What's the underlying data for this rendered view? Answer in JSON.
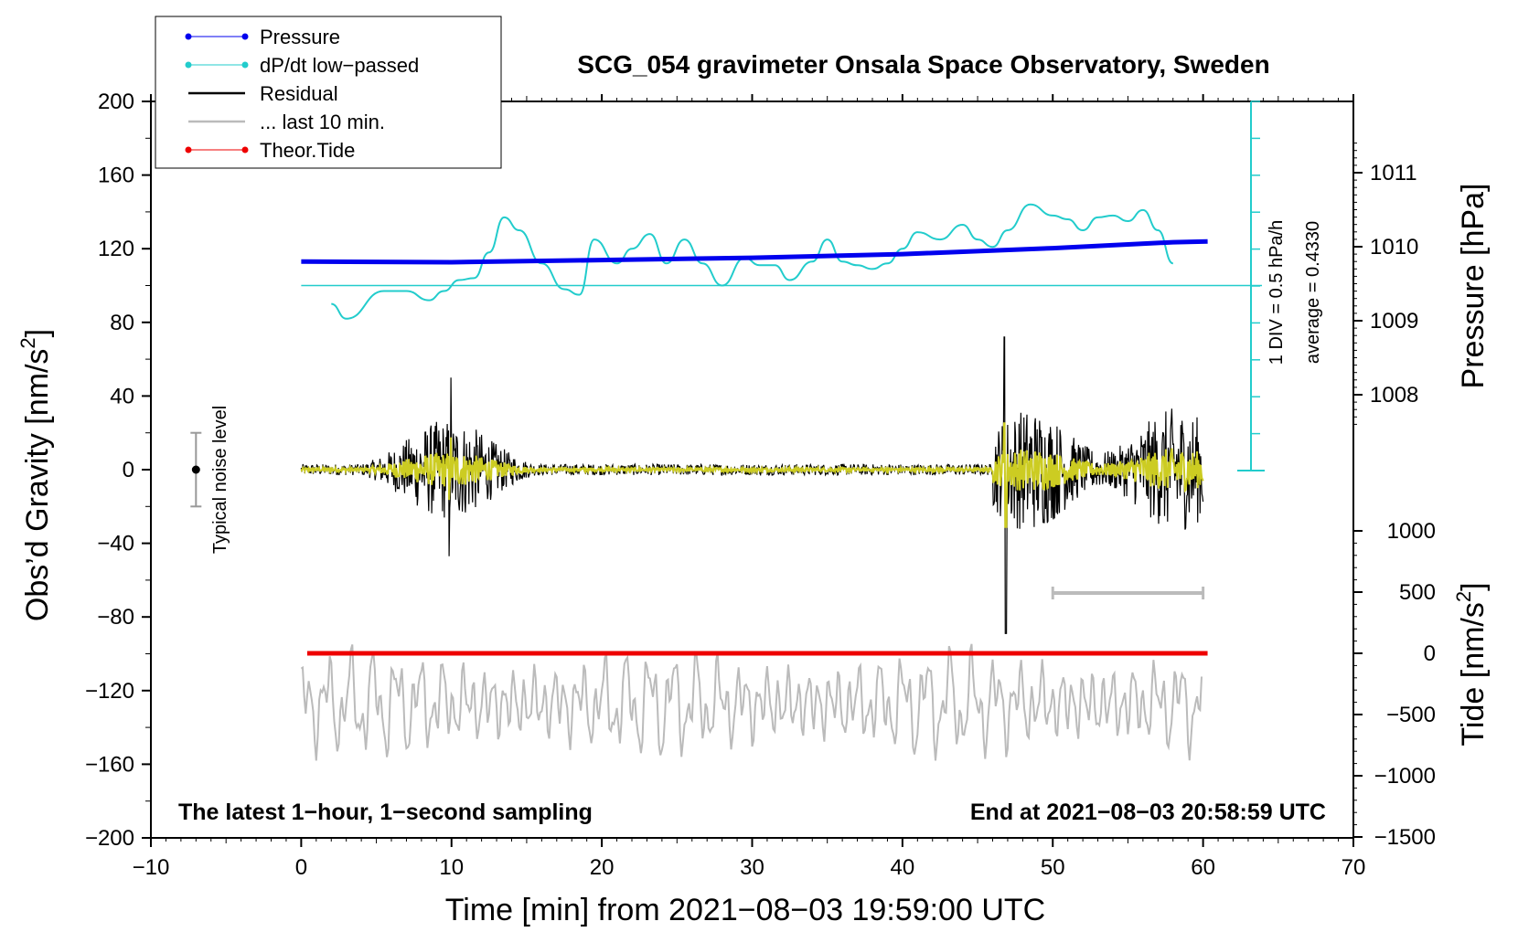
{
  "chart_data": {
    "type": "line",
    "title": "SCG_054 gravimeter Onsala Space Observatory, Sweden",
    "xlabel": "Time [min] from 2021−08−03 19:59:00 UTC",
    "ylabel_left_pre": "Obs’d Gravity [nm/s",
    "ylabel_left_sup": "2",
    "ylabel_left_post": "]",
    "ylabel_right_pressure": "Pressure [hPa]",
    "ylabel_right_tide_pre": "Tide [nm/s",
    "ylabel_right_tide_sup": "2",
    "ylabel_right_tide_post": "]",
    "xlim": [
      -10,
      70
    ],
    "ylim": [
      -200,
      200
    ],
    "x_ticks": [
      "−10",
      "0",
      "10",
      "20",
      "30",
      "40",
      "50",
      "60",
      "70"
    ],
    "y_ticks": [
      "200",
      "160",
      "120",
      "80",
      "40",
      "0",
      "−40",
      "−80",
      "−120",
      "−160",
      "−200"
    ],
    "pressure_ticks": [
      "1011",
      "1010",
      "1009",
      "1008"
    ],
    "tide_ticks": [
      "1000",
      "500",
      "0",
      "−500",
      "−1000",
      "−1500"
    ],
    "legend": {
      "position": "top-left",
      "entries": [
        {
          "label": "Pressure",
          "color": "#0000ee",
          "marker": "dot"
        },
        {
          "label": "dP/dt low−passed",
          "color": "#22cccc",
          "marker": "dot"
        },
        {
          "label": "Residual",
          "color": "#000000",
          "marker": "line"
        },
        {
          "label": "... last 10 min.",
          "color": "#bbbbbb",
          "marker": "line"
        },
        {
          "label": "Theor.Tide",
          "color": "#ee0000",
          "marker": "dot"
        }
      ]
    },
    "annotations": {
      "bottom_left": "The latest 1−hour, 1−second sampling",
      "bottom_right": "End at 2021−08−03 20:58:59 UTC",
      "noise": "Typical noise level",
      "div": "1 DIV = 0.5 hPa/h",
      "average": "average = 0.4330"
    },
    "noise_bar": {
      "x": -7,
      "y": 0,
      "low": -20,
      "high": 20
    },
    "last10_bar": {
      "x0": 50,
      "x1": 60,
      "y": -67
    },
    "dpdt_reference_level": 100,
    "pressure_series": {
      "name": "Pressure",
      "unit": "hPa",
      "x": [
        0,
        10,
        20,
        30,
        40,
        50,
        58,
        60.3
      ],
      "values": [
        1009.8,
        1009.79,
        1009.82,
        1009.85,
        1009.9,
        1009.98,
        1010.06,
        1010.07
      ]
    },
    "dpdt_series": {
      "name": "dP/dt low-passed",
      "x": [
        2.0,
        3.0,
        5.5,
        7.0,
        8.5,
        9.5,
        10.5,
        11.5,
        12.5,
        13.5,
        14.5,
        16.0,
        17.5,
        18.5,
        19.5,
        21.0,
        22.0,
        23.2,
        24.3,
        25.5,
        26.7,
        28.0,
        29.5,
        30.5,
        31.5,
        32.5,
        34.0,
        35.0,
        36.0,
        37.0,
        38.0,
        39.0,
        40.0,
        41.0,
        42.5,
        44.0,
        45.0,
        46.0,
        47.0,
        48.5,
        50.0,
        51.0,
        52.0,
        53.0,
        54.0,
        55.0,
        56.0,
        57.0,
        58.0
      ],
      "values": [
        90,
        82,
        97,
        97,
        92,
        97,
        103,
        104,
        118,
        137,
        130,
        112,
        98,
        95,
        125,
        112,
        120,
        128,
        112,
        125,
        112,
        100,
        115,
        111,
        111,
        103,
        113,
        125,
        113,
        111,
        109,
        112,
        120,
        129,
        125,
        133,
        125,
        121,
        130,
        144,
        138,
        136,
        130,
        137,
        138,
        135,
        141,
        130,
        112
      ]
    },
    "tide_series": {
      "name": "Theor.Tide",
      "x0": 0.4,
      "x1": 60.3,
      "values_nm_s2": [
        0,
        0
      ]
    },
    "residual_series": {
      "name": "Residual",
      "x0": 0,
      "x1": 60,
      "bursts": [
        {
          "x0": 3.5,
          "x1": 17.5,
          "peak": 50,
          "note": "earthquake waves, max ~50, min ~-47"
        },
        {
          "x0": 46.0,
          "x1": 60.0,
          "peak": 72,
          "note": "max ~72 at 46.8, min ~-89 at 46.8"
        }
      ]
    },
    "filtered_series": {
      "name": "yellow low-passed residual",
      "color": "#cccc22",
      "x0": 0,
      "x1": 60
    },
    "last10_series": {
      "name": "... last 10 min.",
      "x0": 0,
      "x1": 60,
      "range": [
        -150,
        -80
      ]
    }
  }
}
